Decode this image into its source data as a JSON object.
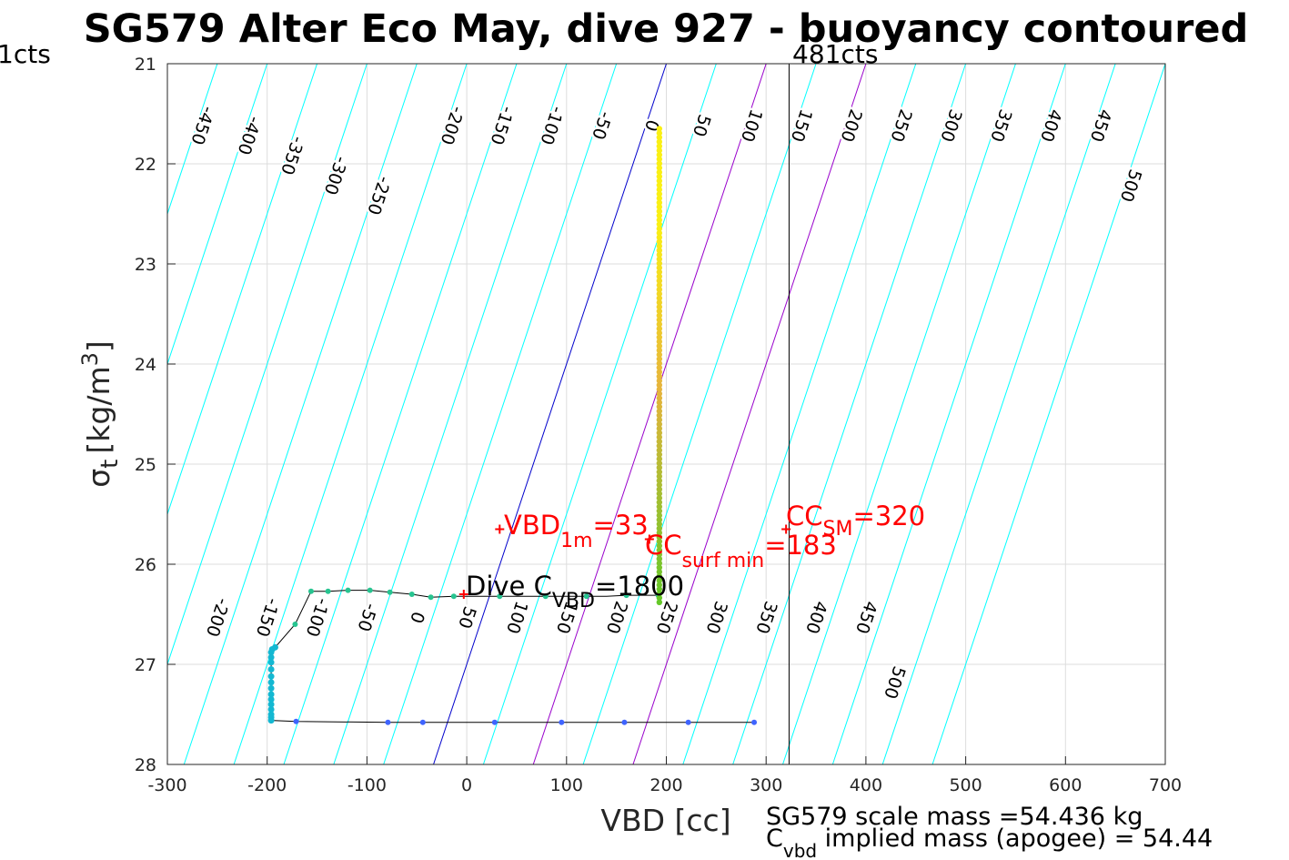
{
  "chart_data": {
    "type": "scatter",
    "title": "SG579 Alter Eco May, dive 927 - buoyancy contoured",
    "xlabel": "VBD [cc]",
    "ylabel_main": "σ",
    "ylabel_sub": "t",
    "ylabel_unit": "[kg/m",
    "ylabel_sup": "3",
    "ylabel_close": "]",
    "xlim": [
      -300,
      700
    ],
    "ylim": [
      21,
      28
    ],
    "y_reversed": true,
    "grid": true,
    "x_ticks": [
      "-300",
      "-200",
      "-100",
      "0",
      "100",
      "200",
      "300",
      "400",
      "500",
      "600",
      "700"
    ],
    "y_ticks": [
      "21",
      "22",
      "23",
      "24",
      "25",
      "26",
      "27",
      "28"
    ],
    "ref_line_x": 323,
    "ref_line_label": "481cts",
    "left_edge_label": "1cts",
    "colors": {
      "contour": "#00ffff",
      "zero": "#0000cc",
      "cc": "#9900cc",
      "red": "#ff0000",
      "grid": "#dddddd"
    },
    "annotations": {
      "vbd1m_main": "VBD",
      "vbd1m_sub": "1m",
      "vbd1m_val": "=33",
      "ccsurf_main": "CC",
      "ccsurf_sub": "surf min",
      "ccsurf_val": "=183",
      "ccsm_main": "CC",
      "ccsm_sub": "SM",
      "ccsm_val": "=320",
      "dive_main": "Dive C",
      "dive_sub": "VBD",
      "dive_val": "=1800",
      "mass_line1": "SG579 scale mass =54.436 kg",
      "mass_line2_main": "C",
      "mass_line2_sub": "vbd",
      "mass_line2_rest": " implied mass (apogee) = 54.44"
    },
    "upper_contours": [
      {
        "label": "-450",
        "x_at_21": -250
      },
      {
        "label": "-400",
        "x_at_21": -200
      },
      {
        "label": "-350",
        "x_at_21": -150
      },
      {
        "label": "-300",
        "x_at_21": -100
      },
      {
        "label": "-250",
        "x_at_21": -50
      },
      {
        "label": "-200",
        "x_at_21": 0
      },
      {
        "label": "-150",
        "x_at_21": 50
      },
      {
        "label": "-100",
        "x_at_21": 100
      },
      {
        "label": "-50",
        "x_at_21": 150
      },
      {
        "label": "0",
        "x_at_21": 200
      },
      {
        "label": "50",
        "x_at_21": 250
      },
      {
        "label": "100",
        "x_at_21": 300
      },
      {
        "label": "150",
        "x_at_21": 350
      },
      {
        "label": "200",
        "x_at_21": 400
      },
      {
        "label": "250",
        "x_at_21": 450
      },
      {
        "label": "300",
        "x_at_21": 500
      },
      {
        "label": "350",
        "x_at_21": 550
      },
      {
        "label": "400",
        "x_at_21": 600
      },
      {
        "label": "450",
        "x_at_21": 650
      },
      {
        "label": "500",
        "x_at_21": 700
      }
    ],
    "lower_contours": [
      {
        "label": "-200",
        "x_at_26_3": -250
      },
      {
        "label": "-150",
        "x_at_26_3": -200
      },
      {
        "label": "-100",
        "x_at_26_3": -150
      },
      {
        "label": "-50",
        "x_at_26_3": -100
      },
      {
        "label": "0",
        "x_at_26_3": -50
      },
      {
        "label": "50",
        "x_at_26_3": 0
      },
      {
        "label": "100",
        "x_at_26_3": 50
      },
      {
        "label": "150",
        "x_at_26_3": 100
      },
      {
        "label": "200",
        "x_at_26_3": 150
      },
      {
        "label": "250",
        "x_at_26_3": 200
      },
      {
        "label": "300",
        "x_at_26_3": 250
      },
      {
        "label": "350",
        "x_at_26_3": 300
      },
      {
        "label": "400",
        "x_at_26_3": 350
      },
      {
        "label": "450",
        "x_at_26_3": 400
      },
      {
        "label": "500",
        "x_at_26_3": 450
      }
    ],
    "markers": [
      {
        "x": 33,
        "y": 25.65
      },
      {
        "x": 183,
        "y": 25.75
      },
      {
        "x": 320,
        "y": 25.65
      },
      {
        "x": -3,
        "y": 26.3
      }
    ],
    "trace": [
      [
        288,
        27.58
      ],
      [
        222,
        27.58
      ],
      [
        158,
        27.58
      ],
      [
        95,
        27.58
      ],
      [
        28,
        27.58
      ],
      [
        -44,
        27.58
      ],
      [
        -79,
        27.58
      ],
      [
        -171,
        27.57
      ],
      [
        -196,
        27.56
      ],
      [
        -196,
        27.5
      ],
      [
        -196,
        27.4
      ],
      [
        -196,
        27.3
      ],
      [
        -196,
        27.18
      ],
      [
        -196,
        27.05
      ],
      [
        -196,
        26.95
      ],
      [
        -196,
        26.88
      ],
      [
        -192,
        26.83
      ],
      [
        -172,
        26.6
      ],
      [
        -156,
        26.27
      ],
      [
        -139,
        26.27
      ],
      [
        -119,
        26.26
      ],
      [
        -97,
        26.26
      ],
      [
        -77,
        26.28
      ],
      [
        -55,
        26.3
      ],
      [
        -36,
        26.33
      ],
      [
        -13,
        26.32
      ],
      [
        10,
        26.32
      ],
      [
        33,
        26.32
      ],
      [
        56,
        26.32
      ],
      [
        79,
        26.32
      ],
      [
        100,
        26.32
      ],
      [
        120,
        26.32
      ],
      [
        140,
        26.32
      ],
      [
        160,
        26.31
      ],
      [
        180,
        26.31
      ],
      [
        192,
        26.31
      ],
      [
        193,
        26.1
      ],
      [
        193,
        25.6
      ],
      [
        193,
        25.0
      ],
      [
        193,
        24.0
      ],
      [
        193,
        23.0
      ],
      [
        193,
        22.0
      ],
      [
        193,
        21.65
      ]
    ],
    "descent_points": [
      {
        "x": 288,
        "y": 27.58
      },
      {
        "x": 222,
        "y": 27.58
      },
      {
        "x": 158,
        "y": 27.58
      },
      {
        "x": 95,
        "y": 27.58
      },
      {
        "x": 28,
        "y": 27.58
      },
      {
        "x": -44,
        "y": 27.58
      },
      {
        "x": -79,
        "y": 27.58
      },
      {
        "x": -171,
        "y": 27.57
      }
    ],
    "bottom_points": [
      {
        "x": -196,
        "y": 27.56
      },
      {
        "x": -196,
        "y": 27.53
      },
      {
        "x": -196,
        "y": 27.5
      },
      {
        "x": -196,
        "y": 27.45
      },
      {
        "x": -196,
        "y": 27.4
      },
      {
        "x": -196,
        "y": 27.35
      },
      {
        "x": -196,
        "y": 27.3
      },
      {
        "x": -196,
        "y": 27.24
      },
      {
        "x": -196,
        "y": 27.18
      },
      {
        "x": -196,
        "y": 27.12
      },
      {
        "x": -196,
        "y": 27.05
      },
      {
        "x": -196,
        "y": 26.98
      },
      {
        "x": -196,
        "y": 26.93
      },
      {
        "x": -196,
        "y": 26.88
      },
      {
        "x": -195,
        "y": 26.85
      },
      {
        "x": -192,
        "y": 26.83
      }
    ],
    "ascent_points": [
      {
        "x": -172,
        "y": 26.6
      },
      {
        "x": -156,
        "y": 26.27
      },
      {
        "x": -139,
        "y": 26.27
      },
      {
        "x": -119,
        "y": 26.26
      },
      {
        "x": -97,
        "y": 26.26
      },
      {
        "x": -77,
        "y": 26.28
      },
      {
        "x": -55,
        "y": 26.3
      },
      {
        "x": -36,
        "y": 26.33
      },
      {
        "x": -13,
        "y": 26.32
      },
      {
        "x": 33,
        "y": 26.32
      },
      {
        "x": 79,
        "y": 26.32
      },
      {
        "x": 120,
        "y": 26.32
      },
      {
        "x": 160,
        "y": 26.31
      },
      {
        "x": 192,
        "y": 26.31
      }
    ],
    "column": {
      "x": 193,
      "y_top": 21.65,
      "y_bottom": 26.38
    }
  }
}
